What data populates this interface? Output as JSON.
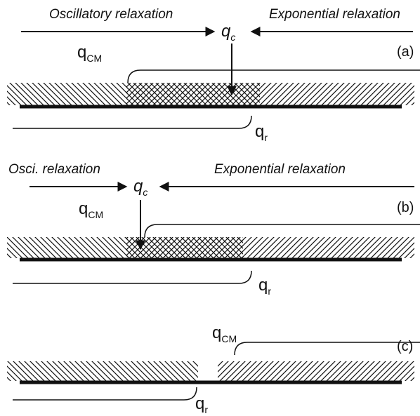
{
  "panels": [
    {
      "tag": "(a)",
      "left_label": "Oscillatory relaxation",
      "right_label": "Exponential relaxation",
      "qc": {
        "main": "q",
        "sub": "c"
      },
      "qcm": {
        "main": "q",
        "sub": "CM"
      },
      "qr": {
        "main": "q",
        "sub": "r"
      }
    },
    {
      "tag": "(b)",
      "left_label": "Osci. relaxation",
      "right_label": "Exponential relaxation",
      "qc": {
        "main": "q",
        "sub": "c"
      },
      "qcm": {
        "main": "q",
        "sub": "CM"
      },
      "qr": {
        "main": "q",
        "sub": "r"
      }
    },
    {
      "tag": "(c)",
      "qcm": {
        "main": "q",
        "sub": "CM"
      },
      "qr": {
        "main": "q",
        "sub": "r"
      }
    }
  ]
}
